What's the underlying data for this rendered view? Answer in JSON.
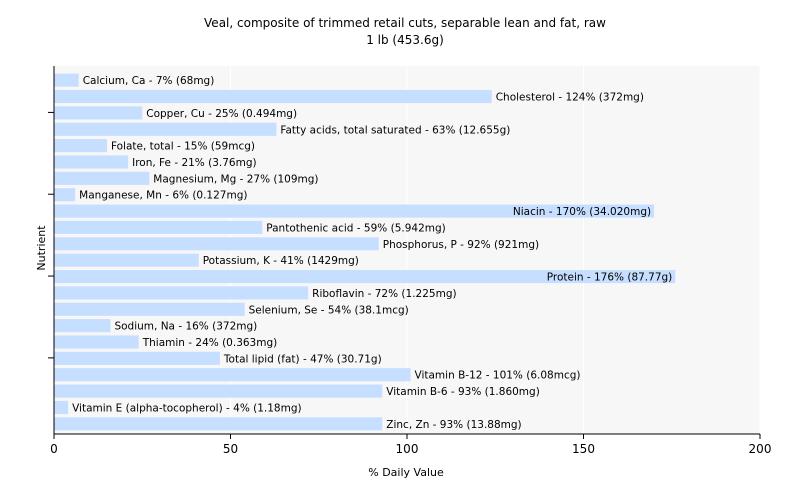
{
  "chart_data": {
    "type": "bar",
    "orientation": "horizontal",
    "title": "Veal, composite of trimmed retail cuts, separable lean and fat, raw",
    "subtitle": "1 lb (453.6g)",
    "xlabel": "% Daily Value",
    "ylabel": "Nutrient",
    "xlim": [
      0,
      200
    ],
    "xticks": [
      0,
      50,
      100,
      150,
      200
    ],
    "grid": true,
    "colors": {
      "bar": "#c6deff",
      "plot_bg": "#f7f7f7",
      "grid": "#ffffff",
      "axis": "#000000"
    },
    "bars": [
      {
        "name": "Calcium, Ca",
        "value": 7,
        "label": "Calcium, Ca - 7% (68mg)"
      },
      {
        "name": "Cholesterol",
        "value": 124,
        "label": "Cholesterol - 124% (372mg)"
      },
      {
        "name": "Copper, Cu",
        "value": 25,
        "label": "Copper, Cu - 25% (0.494mg)"
      },
      {
        "name": "Fatty acids, total saturated",
        "value": 63,
        "label": "Fatty acids, total saturated - 63% (12.655g)"
      },
      {
        "name": "Folate, total",
        "value": 15,
        "label": "Folate, total - 15% (59mcg)"
      },
      {
        "name": "Iron, Fe",
        "value": 21,
        "label": "Iron, Fe - 21% (3.76mg)"
      },
      {
        "name": "Magnesium, Mg",
        "value": 27,
        "label": "Magnesium, Mg - 27% (109mg)"
      },
      {
        "name": "Manganese, Mn",
        "value": 6,
        "label": "Manganese, Mn - 6% (0.127mg)"
      },
      {
        "name": "Niacin",
        "value": 170,
        "label": "Niacin - 170% (34.020mg)"
      },
      {
        "name": "Pantothenic acid",
        "value": 59,
        "label": "Pantothenic acid - 59% (5.942mg)"
      },
      {
        "name": "Phosphorus, P",
        "value": 92,
        "label": "Phosphorus, P - 92% (921mg)"
      },
      {
        "name": "Potassium, K",
        "value": 41,
        "label": "Potassium, K - 41% (1429mg)"
      },
      {
        "name": "Protein",
        "value": 176,
        "label": "Protein - 176% (87.77g)"
      },
      {
        "name": "Riboflavin",
        "value": 72,
        "label": "Riboflavin - 72% (1.225mg)"
      },
      {
        "name": "Selenium, Se",
        "value": 54,
        "label": "Selenium, Se - 54% (38.1mcg)"
      },
      {
        "name": "Sodium, Na",
        "value": 16,
        "label": "Sodium, Na - 16% (372mg)"
      },
      {
        "name": "Thiamin",
        "value": 24,
        "label": "Thiamin - 24% (0.363mg)"
      },
      {
        "name": "Total lipid (fat)",
        "value": 47,
        "label": "Total lipid (fat) - 47% (30.71g)"
      },
      {
        "name": "Vitamin B-12",
        "value": 101,
        "label": "Vitamin B-12 - 101% (6.08mcg)"
      },
      {
        "name": "Vitamin B-6",
        "value": 93,
        "label": "Vitamin B-6 - 93% (1.860mg)"
      },
      {
        "name": "Vitamin E (alpha-tocopherol)",
        "value": 4,
        "label": "Vitamin E (alpha-tocopherol) - 4% (1.18mg)"
      },
      {
        "name": "Zinc, Zn",
        "value": 93,
        "label": "Zinc, Zn - 93% (13.88mg)"
      }
    ]
  }
}
